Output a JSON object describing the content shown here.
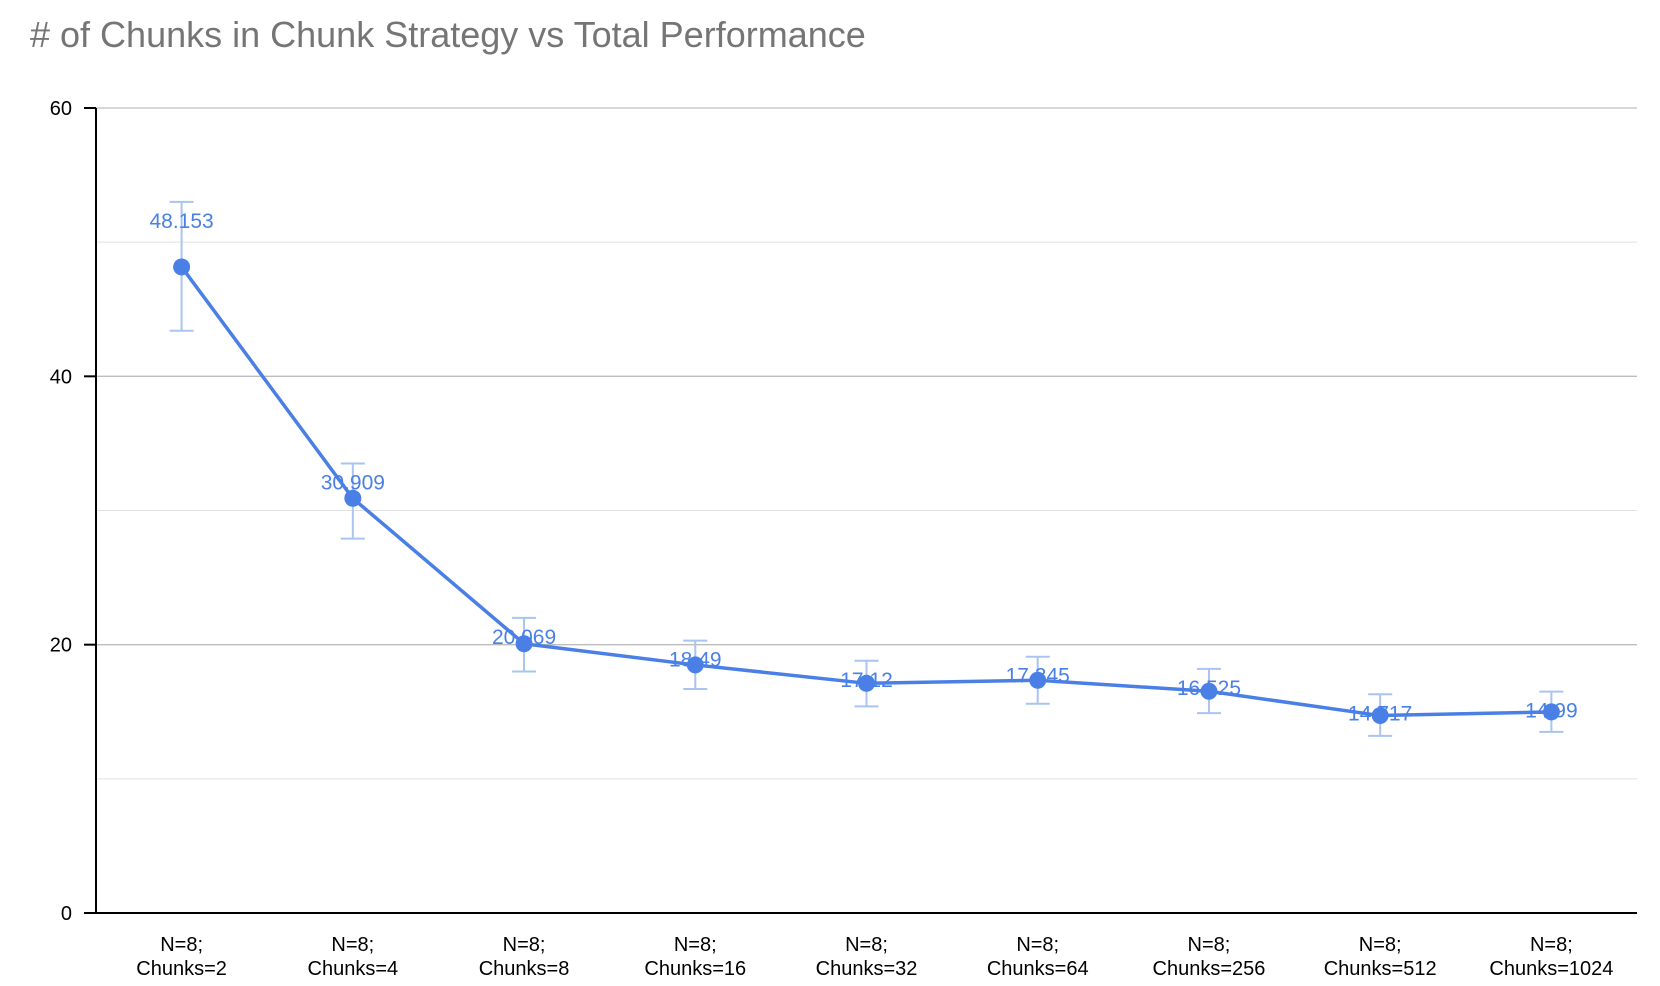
{
  "chart_data": {
    "type": "line",
    "title": "# of Chunks in Chunk Strategy vs Total Performance",
    "xlabel": "",
    "ylabel": "",
    "ylim": [
      0,
      60
    ],
    "yticks": [
      "0",
      "20",
      "40",
      "60"
    ],
    "grid": true,
    "legend": "none",
    "colors": {
      "series": "#4a80e6",
      "errorbar": "#a9c4f0",
      "grid": "#cccccc",
      "title": "#757575"
    },
    "categories": [
      [
        "N=8;",
        "Chunks=2"
      ],
      [
        "N=8;",
        "Chunks=4"
      ],
      [
        "N=8;",
        "Chunks=8"
      ],
      [
        "N=8;",
        "Chunks=16"
      ],
      [
        "N=8;",
        "Chunks=32"
      ],
      [
        "N=8;",
        "Chunks=64"
      ],
      [
        "N=8;",
        "Chunks=256"
      ],
      [
        "N=8;",
        "Chunks=512"
      ],
      [
        "N=8;",
        "Chunks=1024"
      ]
    ],
    "series": [
      {
        "values": [
          48.153,
          30.909,
          20.069,
          18.49,
          17.12,
          17.345,
          16.525,
          14.717,
          14.99
        ],
        "labels": [
          "48.153",
          "30.909",
          "20.069",
          "18.49",
          "17.12",
          "17.345",
          "16.525",
          "14.717",
          "14.99"
        ],
        "error_low": [
          43.4,
          27.9,
          18.0,
          16.7,
          15.4,
          15.6,
          14.9,
          13.2,
          13.5
        ],
        "error_high": [
          53.0,
          33.5,
          22.0,
          20.3,
          18.8,
          19.1,
          18.2,
          16.3,
          16.5
        ]
      }
    ]
  }
}
